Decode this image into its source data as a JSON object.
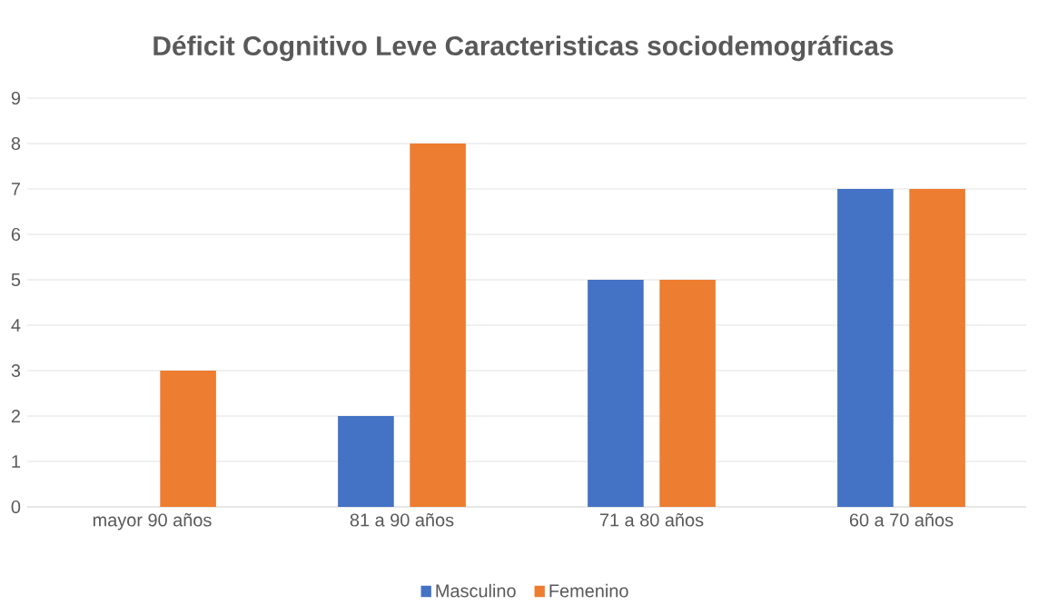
{
  "chart_data": {
    "type": "bar",
    "title": "Déficit Cognitivo Leve Caracteristicas sociodemográficas",
    "categories": [
      "mayor 90 años",
      "81 a 90 años",
      "71 a 80 años",
      "60 a 70 años"
    ],
    "series": [
      {
        "name": "Masculino",
        "color": "#4472c4",
        "values": [
          0,
          2,
          5,
          7
        ]
      },
      {
        "name": "Femenino",
        "color": "#ed7d31",
        "values": [
          3,
          8,
          5,
          7
        ]
      }
    ],
    "ylim": [
      0,
      9
    ],
    "yticks": [
      0,
      1,
      2,
      3,
      4,
      5,
      6,
      7,
      8,
      9
    ],
    "grid": "y",
    "legend": "bottom"
  }
}
